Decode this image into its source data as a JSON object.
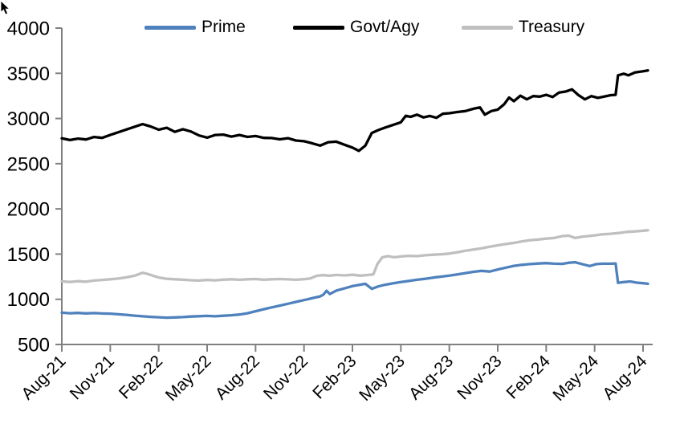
{
  "chart_data": {
    "type": "line",
    "title": "",
    "xlabel": "",
    "ylabel": "",
    "ylim": [
      500,
      4000
    ],
    "y_ticks": [
      500,
      1000,
      1500,
      2000,
      2500,
      3000,
      3500,
      4000
    ],
    "x_months_range": [
      0,
      36.6
    ],
    "x_tick_months": [
      0,
      3,
      6,
      9,
      12,
      15,
      18,
      21,
      24,
      27,
      30,
      33,
      36
    ],
    "x_tick_labels": [
      "Aug-21",
      "Nov-21",
      "Feb-22",
      "May-22",
      "Aug-22",
      "Nov-22",
      "Feb-23",
      "May-23",
      "Aug-23",
      "Nov-23",
      "Feb-24",
      "May-24",
      "Aug-24"
    ],
    "grid": false,
    "legend_position": "top",
    "axis_color": "#808080",
    "label_color": "#000000",
    "series": [
      {
        "name": "Prime",
        "color": "#4F81BD",
        "points": [
          [
            0,
            852
          ],
          [
            0.5,
            846
          ],
          [
            1,
            849
          ],
          [
            1.5,
            844
          ],
          [
            2,
            847
          ],
          [
            2.5,
            843
          ],
          [
            3,
            841
          ],
          [
            3.5,
            834
          ],
          [
            4,
            828
          ],
          [
            4.5,
            819
          ],
          [
            5,
            812
          ],
          [
            5.5,
            806
          ],
          [
            6,
            801
          ],
          [
            6.5,
            797
          ],
          [
            7,
            799
          ],
          [
            7.5,
            803
          ],
          [
            8,
            809
          ],
          [
            8.5,
            813
          ],
          [
            9,
            816
          ],
          [
            9.5,
            812
          ],
          [
            10,
            818
          ],
          [
            10.5,
            823
          ],
          [
            11,
            831
          ],
          [
            11.5,
            846
          ],
          [
            12,
            868
          ],
          [
            12.5,
            890
          ],
          [
            13,
            910
          ],
          [
            13.5,
            930
          ],
          [
            14,
            950
          ],
          [
            14.5,
            971
          ],
          [
            15,
            991
          ],
          [
            15.5,
            1012
          ],
          [
            16,
            1032
          ],
          [
            16.2,
            1052
          ],
          [
            16.4,
            1094
          ],
          [
            16.6,
            1058
          ],
          [
            17,
            1096
          ],
          [
            17.5,
            1120
          ],
          [
            18,
            1146
          ],
          [
            18.4,
            1158
          ],
          [
            18.8,
            1172
          ],
          [
            19.2,
            1116
          ],
          [
            19.6,
            1142
          ],
          [
            20,
            1160
          ],
          [
            20.5,
            1176
          ],
          [
            21,
            1190
          ],
          [
            21.5,
            1203
          ],
          [
            22,
            1216
          ],
          [
            22.5,
            1227
          ],
          [
            23,
            1240
          ],
          [
            23.5,
            1251
          ],
          [
            24,
            1262
          ],
          [
            24.5,
            1275
          ],
          [
            25,
            1290
          ],
          [
            25.5,
            1304
          ],
          [
            26,
            1315
          ],
          [
            26.5,
            1307
          ],
          [
            27,
            1330
          ],
          [
            27.5,
            1350
          ],
          [
            28,
            1370
          ],
          [
            28.5,
            1381
          ],
          [
            29,
            1389
          ],
          [
            29.5,
            1395
          ],
          [
            30,
            1400
          ],
          [
            30.5,
            1394
          ],
          [
            31,
            1392
          ],
          [
            31.4,
            1404
          ],
          [
            31.8,
            1410
          ],
          [
            32.3,
            1386
          ],
          [
            32.7,
            1368
          ],
          [
            33.1,
            1389
          ],
          [
            33.5,
            1394
          ],
          [
            34,
            1394
          ],
          [
            34.3,
            1396
          ],
          [
            34.45,
            1182
          ],
          [
            34.8,
            1190
          ],
          [
            35.2,
            1197
          ],
          [
            35.6,
            1184
          ],
          [
            36,
            1178
          ],
          [
            36.3,
            1172
          ]
        ]
      },
      {
        "name": "Govt/Agy",
        "color": "#000000",
        "points": [
          [
            0,
            2780
          ],
          [
            0.5,
            2762
          ],
          [
            1,
            2778
          ],
          [
            1.5,
            2768
          ],
          [
            2,
            2795
          ],
          [
            2.5,
            2786
          ],
          [
            3,
            2818
          ],
          [
            3.5,
            2848
          ],
          [
            4,
            2878
          ],
          [
            4.5,
            2908
          ],
          [
            5,
            2938
          ],
          [
            5.5,
            2912
          ],
          [
            6,
            2876
          ],
          [
            6.5,
            2898
          ],
          [
            7,
            2852
          ],
          [
            7.5,
            2882
          ],
          [
            8,
            2856
          ],
          [
            8.5,
            2812
          ],
          [
            9,
            2788
          ],
          [
            9.5,
            2818
          ],
          [
            10,
            2822
          ],
          [
            10.5,
            2800
          ],
          [
            11,
            2818
          ],
          [
            11.5,
            2796
          ],
          [
            12,
            2806
          ],
          [
            12.5,
            2786
          ],
          [
            13,
            2784
          ],
          [
            13.5,
            2770
          ],
          [
            14,
            2782
          ],
          [
            14.5,
            2756
          ],
          [
            15,
            2748
          ],
          [
            15.5,
            2726
          ],
          [
            16,
            2700
          ],
          [
            16.5,
            2738
          ],
          [
            17,
            2744
          ],
          [
            17.5,
            2710
          ],
          [
            18,
            2678
          ],
          [
            18.4,
            2642
          ],
          [
            18.8,
            2700
          ],
          [
            19.2,
            2840
          ],
          [
            19.6,
            2872
          ],
          [
            20,
            2898
          ],
          [
            20.5,
            2928
          ],
          [
            21,
            2958
          ],
          [
            21.3,
            3030
          ],
          [
            21.6,
            3018
          ],
          [
            22,
            3042
          ],
          [
            22.4,
            3012
          ],
          [
            22.8,
            3028
          ],
          [
            23.2,
            3008
          ],
          [
            23.6,
            3052
          ],
          [
            24,
            3058
          ],
          [
            24.5,
            3072
          ],
          [
            25,
            3082
          ],
          [
            25.5,
            3108
          ],
          [
            25.9,
            3122
          ],
          [
            26.2,
            3042
          ],
          [
            26.6,
            3082
          ],
          [
            27,
            3098
          ],
          [
            27.4,
            3158
          ],
          [
            27.7,
            3232
          ],
          [
            28,
            3192
          ],
          [
            28.4,
            3252
          ],
          [
            28.8,
            3212
          ],
          [
            29.2,
            3248
          ],
          [
            29.6,
            3242
          ],
          [
            30,
            3262
          ],
          [
            30.4,
            3238
          ],
          [
            30.8,
            3288
          ],
          [
            31.2,
            3298
          ],
          [
            31.6,
            3322
          ],
          [
            32,
            3258
          ],
          [
            32.4,
            3212
          ],
          [
            32.8,
            3248
          ],
          [
            33.2,
            3228
          ],
          [
            33.6,
            3242
          ],
          [
            34,
            3258
          ],
          [
            34.3,
            3262
          ],
          [
            34.45,
            3478
          ],
          [
            34.8,
            3495
          ],
          [
            35.1,
            3478
          ],
          [
            35.5,
            3510
          ],
          [
            36,
            3522
          ],
          [
            36.3,
            3532
          ]
        ]
      },
      {
        "name": "Treasury",
        "color": "#BFBFBF",
        "points": [
          [
            0,
            1198
          ],
          [
            0.5,
            1191
          ],
          [
            1,
            1200
          ],
          [
            1.5,
            1195
          ],
          [
            2,
            1207
          ],
          [
            2.5,
            1214
          ],
          [
            3,
            1221
          ],
          [
            3.5,
            1229
          ],
          [
            4,
            1243
          ],
          [
            4.5,
            1260
          ],
          [
            5,
            1293
          ],
          [
            5.3,
            1281
          ],
          [
            5.7,
            1258
          ],
          [
            6,
            1241
          ],
          [
            6.5,
            1227
          ],
          [
            7,
            1221
          ],
          [
            7.5,
            1217
          ],
          [
            8,
            1211
          ],
          [
            8.5,
            1207
          ],
          [
            9,
            1214
          ],
          [
            9.5,
            1210
          ],
          [
            10,
            1217
          ],
          [
            10.5,
            1221
          ],
          [
            11,
            1216
          ],
          [
            11.5,
            1221
          ],
          [
            12,
            1224
          ],
          [
            12.5,
            1217
          ],
          [
            13,
            1221
          ],
          [
            13.5,
            1224
          ],
          [
            14,
            1220
          ],
          [
            14.5,
            1216
          ],
          [
            15,
            1222
          ],
          [
            15.4,
            1231
          ],
          [
            15.8,
            1260
          ],
          [
            16.2,
            1267
          ],
          [
            16.6,
            1261
          ],
          [
            17,
            1269
          ],
          [
            17.5,
            1264
          ],
          [
            18,
            1271
          ],
          [
            18.5,
            1261
          ],
          [
            19,
            1269
          ],
          [
            19.3,
            1276
          ],
          [
            19.55,
            1392
          ],
          [
            19.85,
            1464
          ],
          [
            20.2,
            1477
          ],
          [
            20.6,
            1465
          ],
          [
            21,
            1474
          ],
          [
            21.5,
            1481
          ],
          [
            22,
            1477
          ],
          [
            22.5,
            1487
          ],
          [
            23,
            1493
          ],
          [
            23.5,
            1498
          ],
          [
            24,
            1506
          ],
          [
            24.5,
            1521
          ],
          [
            25,
            1537
          ],
          [
            25.5,
            1551
          ],
          [
            26,
            1564
          ],
          [
            26.5,
            1581
          ],
          [
            27,
            1597
          ],
          [
            27.5,
            1611
          ],
          [
            28,
            1624
          ],
          [
            28.5,
            1641
          ],
          [
            29,
            1654
          ],
          [
            29.5,
            1661
          ],
          [
            30,
            1671
          ],
          [
            30.5,
            1679
          ],
          [
            31,
            1699
          ],
          [
            31.4,
            1704
          ],
          [
            31.8,
            1678
          ],
          [
            32.2,
            1691
          ],
          [
            32.6,
            1699
          ],
          [
            33,
            1707
          ],
          [
            33.5,
            1719
          ],
          [
            34,
            1725
          ],
          [
            34.5,
            1733
          ],
          [
            35,
            1745
          ],
          [
            35.5,
            1751
          ],
          [
            36,
            1759
          ],
          [
            36.3,
            1763
          ]
        ]
      }
    ]
  }
}
